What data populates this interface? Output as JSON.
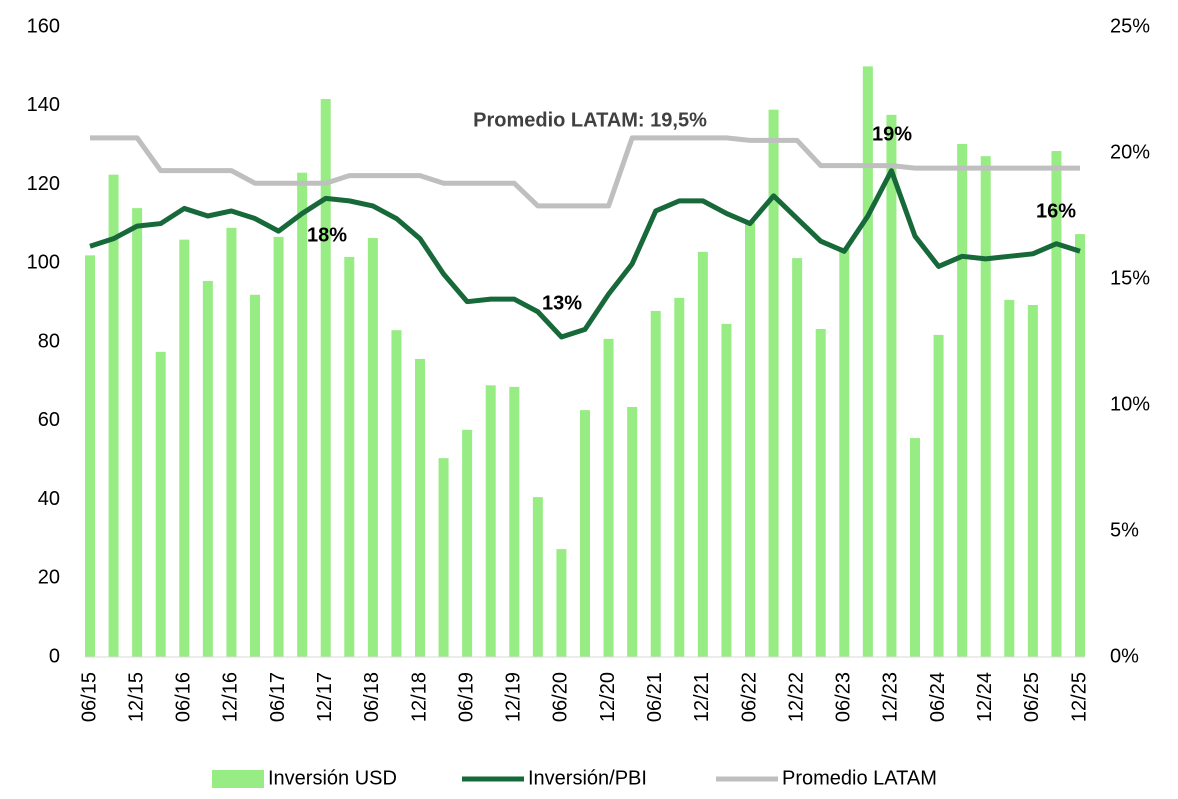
{
  "chart_data": {
    "type": "bar-line",
    "categories": [
      "06/15",
      null,
      "12/15",
      null,
      "06/16",
      null,
      "12/16",
      null,
      "06/17",
      null,
      "12/17",
      null,
      "06/18",
      null,
      "12/18",
      null,
      "06/19",
      null,
      "12/19",
      null,
      "06/20",
      null,
      "12/20",
      null,
      "06/21",
      null,
      "12/21",
      null,
      "06/22",
      null,
      "12/22",
      null,
      "06/23",
      null,
      "12/23",
      null,
      "06/24",
      null,
      "12/24",
      null,
      "06/25",
      null,
      "12/25"
    ],
    "series": [
      {
        "name": "Inversión USD",
        "type": "bar",
        "color": "#98ec84",
        "values": [
          102,
          122.5,
          114,
          77.5,
          106,
          95.5,
          109,
          92,
          106.7,
          123,
          141.7,
          101.6,
          106.4,
          83,
          75.7,
          50.5,
          57.7,
          69,
          68.6,
          40.6,
          27.4,
          62.7,
          80.8,
          63.5,
          87.9,
          91.2,
          102.9,
          84.6,
          110.5,
          139,
          101.3,
          83.3,
          104,
          150,
          137.7,
          55.6,
          81.8,
          130.3,
          127.2,
          90.7,
          89.4,
          128.5,
          107.4
        ]
      },
      {
        "name": "Inversión/PBI",
        "type": "line",
        "axis": "y2",
        "color": "#17693a",
        "values": [
          16.3,
          16.6,
          17.1,
          17.2,
          17.8,
          17.5,
          17.7,
          17.4,
          16.9,
          17.6,
          18.2,
          18.1,
          17.9,
          17.4,
          16.6,
          15.2,
          14.1,
          14.2,
          14.2,
          13.7,
          12.7,
          13.0,
          14.4,
          15.6,
          17.7,
          18.1,
          18.1,
          17.6,
          17.2,
          18.3,
          17.4,
          16.5,
          16.1,
          17.5,
          19.3,
          16.7,
          15.5,
          15.9,
          15.8,
          15.9,
          16.0,
          16.4,
          16.1
        ]
      },
      {
        "name": "Promedio LATAM",
        "type": "line",
        "axis": "y2",
        "color": "#bfbfbf",
        "values": [
          20.6,
          20.6,
          20.6,
          19.3,
          19.3,
          19.3,
          19.3,
          18.8,
          18.8,
          18.8,
          18.8,
          19.1,
          19.1,
          19.1,
          19.1,
          18.8,
          18.8,
          18.8,
          18.8,
          17.9,
          17.9,
          17.9,
          17.9,
          20.6,
          20.6,
          20.6,
          20.6,
          20.6,
          20.5,
          20.5,
          20.5,
          19.5,
          19.5,
          19.5,
          19.5,
          19.4,
          19.4,
          19.4,
          19.4,
          19.4,
          19.4,
          19.4,
          19.4
        ]
      }
    ],
    "annotations": [
      "Promedio LATAM: 19,5%",
      "18%",
      "13%",
      "19%",
      "16%"
    ],
    "ylim": [
      0,
      160
    ],
    "yticks": [
      0,
      20,
      40,
      60,
      80,
      100,
      120,
      140,
      160
    ],
    "y2lim": [
      0,
      25
    ],
    "y2ticks": [
      {
        "value": 0,
        "label": "0%"
      },
      {
        "value": 5,
        "label": "5%"
      },
      {
        "value": 10,
        "label": "10%"
      },
      {
        "value": 15,
        "label": "15%"
      },
      {
        "value": 20,
        "label": "20%"
      },
      {
        "value": 25,
        "label": "25%"
      }
    ],
    "legend": "bottom",
    "grid": false
  }
}
